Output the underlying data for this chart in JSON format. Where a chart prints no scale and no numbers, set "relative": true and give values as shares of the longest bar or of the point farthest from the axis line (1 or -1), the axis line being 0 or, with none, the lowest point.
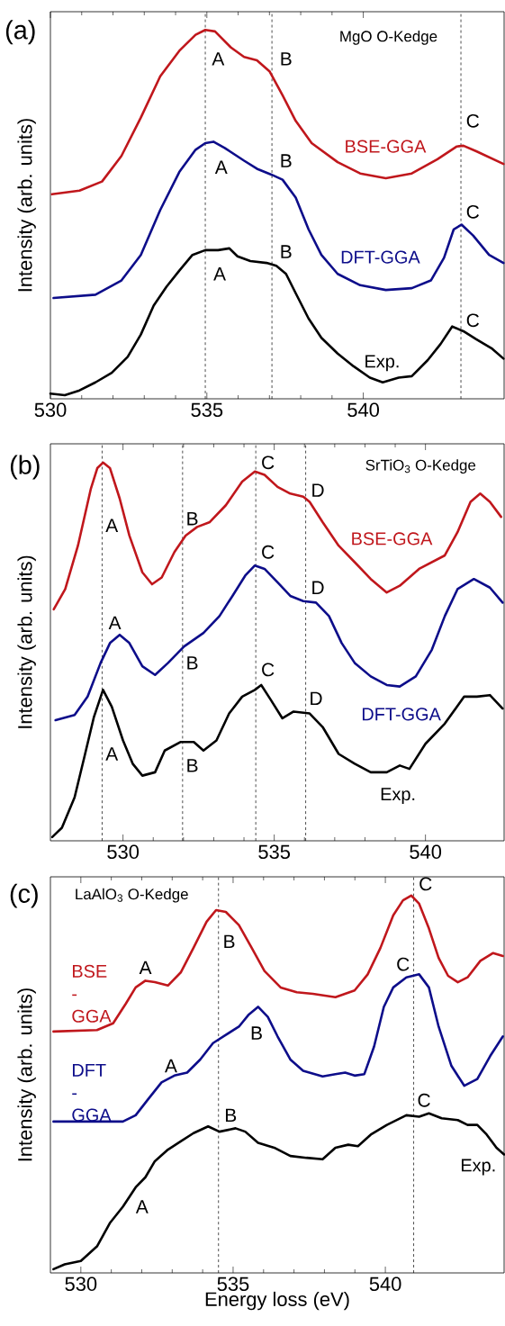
{
  "chart_data": [
    {
      "type": "line",
      "title": "MgO O-Kedge",
      "ylabel": "Intensity (arb. units)",
      "relative": true,
      "xlim": [
        530,
        544.5
      ],
      "xticks": [
        530,
        535,
        540
      ],
      "series": [
        {
          "name": "BSE-GGA",
          "color": "#c0171c",
          "x": [
            530.05,
            530.93,
            531.65,
            532.27,
            532.89,
            533.51,
            534.12,
            534.64,
            534.95,
            535.26,
            535.77,
            536.19,
            536.6,
            537.01,
            537.42,
            537.84,
            538.35,
            539.18,
            539.9,
            540.72,
            541.55,
            542.37,
            542.99,
            543.2,
            543.61,
            544.48
          ],
          "values": [
            0.55,
            0.56,
            0.585,
            0.655,
            0.76,
            0.873,
            0.943,
            0.987,
            1.0,
            0.996,
            0.952,
            0.926,
            0.917,
            0.886,
            0.821,
            0.751,
            0.69,
            0.638,
            0.607,
            0.594,
            0.607,
            0.646,
            0.681,
            0.683,
            0.668,
            0.633
          ]
        },
        {
          "name": "DFT-GGA",
          "color": "#0d0d8a",
          "x": [
            530.1,
            531.44,
            532.27,
            532.89,
            533.51,
            534.12,
            534.64,
            534.95,
            535.21,
            535.57,
            536.19,
            536.6,
            537.06,
            537.42,
            537.84,
            538.25,
            538.66,
            539.18,
            539.9,
            540.72,
            541.55,
            542.16,
            542.58,
            542.89,
            543.14,
            543.51,
            544.02,
            544.48
          ],
          "values": [
            0.266,
            0.275,
            0.314,
            0.384,
            0.507,
            0.611,
            0.672,
            0.69,
            0.694,
            0.677,
            0.642,
            0.62,
            0.604,
            0.59,
            0.541,
            0.454,
            0.384,
            0.332,
            0.301,
            0.288,
            0.293,
            0.314,
            0.376,
            0.454,
            0.467,
            0.437,
            0.384,
            0.362
          ]
        },
        {
          "name": "Exp.",
          "color": "#000000",
          "x": [
            530.0,
            530.46,
            530.93,
            531.44,
            531.96,
            532.47,
            532.89,
            533.3,
            533.71,
            534.12,
            534.54,
            534.95,
            535.36,
            535.72,
            535.98,
            536.39,
            536.91,
            537.22,
            537.53,
            537.84,
            538.25,
            538.66,
            539.18,
            539.69,
            540.21,
            540.62,
            541.13,
            541.55,
            542.06,
            542.47,
            542.84,
            543.2,
            543.61,
            544.12,
            544.48
          ],
          "values": [
            0.004,
            0,
            0.013,
            0.035,
            0.061,
            0.105,
            0.166,
            0.245,
            0.297,
            0.341,
            0.384,
            0.397,
            0.397,
            0.402,
            0.38,
            0.367,
            0.362,
            0.354,
            0.332,
            0.279,
            0.21,
            0.157,
            0.114,
            0.079,
            0.048,
            0.035,
            0.048,
            0.052,
            0.096,
            0.14,
            0.188,
            0.175,
            0.153,
            0.127,
            0.1
          ]
        }
      ],
      "ref_lines": [
        {
          "axis": "x",
          "value": 534.95,
          "line_style": "dashed",
          "color": "#000000"
        },
        {
          "axis": "x",
          "value": 537.08,
          "line_style": "dashed",
          "color": "#000000"
        },
        {
          "axis": "x",
          "value": 543.12,
          "line_style": "dashed",
          "color": "#000000"
        }
      ],
      "annotations": [
        "(a)",
        "A",
        "B",
        "C",
        "A",
        "B",
        "C",
        "A",
        "B",
        "C"
      ]
    },
    {
      "type": "line",
      "title": "SrTiO$_{3}$ O-Kedge",
      "ylabel": "Intensity (arb. units)",
      "relative": true,
      "xlim": [
        527.6,
        542.6
      ],
      "xticks": [
        530,
        535,
        540
      ],
      "series": [
        {
          "name": "BSE-GGA",
          "color": "#c0171c",
          "x": [
            527.71,
            528.09,
            528.51,
            528.94,
            529.15,
            529.34,
            529.57,
            529.89,
            530.21,
            530.64,
            530.96,
            531.28,
            531.7,
            532.07,
            532.45,
            532.87,
            533.4,
            533.94,
            534.36,
            534.68,
            535.11,
            535.53,
            535.96,
            536.17,
            536.6,
            537.13,
            537.66,
            538.19,
            538.72,
            539.15,
            539.79,
            540.64,
            541.06,
            541.49,
            541.81,
            542.13,
            542.5
          ],
          "values": [
            0.608,
            0.662,
            0.778,
            0.931,
            0.985,
            1.0,
            0.985,
            0.904,
            0.805,
            0.707,
            0.675,
            0.693,
            0.761,
            0.805,
            0.828,
            0.841,
            0.886,
            0.949,
            0.976,
            0.967,
            0.935,
            0.917,
            0.909,
            0.895,
            0.841,
            0.778,
            0.734,
            0.689,
            0.653,
            0.671,
            0.716,
            0.752,
            0.814,
            0.895,
            0.917,
            0.895,
            0.855
          ]
        },
        {
          "name": "DFT-GGA",
          "color": "#0d0d8a",
          "x": [
            527.77,
            528.4,
            528.83,
            529.26,
            529.57,
            529.89,
            530.21,
            530.64,
            531.06,
            531.49,
            532.02,
            532.66,
            533.19,
            533.62,
            534.04,
            534.36,
            534.68,
            535.11,
            535.53,
            535.96,
            536.38,
            536.81,
            537.23,
            537.66,
            538.19,
            538.72,
            539.15,
            539.68,
            540.21,
            540.64,
            541.06,
            541.6,
            542.13,
            542.55
          ],
          "values": [
            0.312,
            0.326,
            0.375,
            0.465,
            0.518,
            0.54,
            0.518,
            0.456,
            0.433,
            0.465,
            0.509,
            0.545,
            0.59,
            0.644,
            0.698,
            0.725,
            0.716,
            0.68,
            0.644,
            0.63,
            0.626,
            0.59,
            0.518,
            0.465,
            0.429,
            0.406,
            0.402,
            0.429,
            0.5,
            0.59,
            0.662,
            0.689,
            0.666,
            0.626
          ]
        },
        {
          "name": "Exp.",
          "color": "#000000",
          "x": [
            527.66,
            527.98,
            528.4,
            528.72,
            529.04,
            529.34,
            529.63,
            530.0,
            530.32,
            530.64,
            531.06,
            531.38,
            531.91,
            532.34,
            532.66,
            533.09,
            533.51,
            533.94,
            534.36,
            534.57,
            534.89,
            535.27,
            535.64,
            536.17,
            536.6,
            537.13,
            537.66,
            538.19,
            538.72,
            539.15,
            539.47,
            540.0,
            540.64,
            541.28,
            541.7,
            542.13,
            542.55
          ],
          "values": [
            0,
            0.025,
            0.106,
            0.213,
            0.321,
            0.393,
            0.348,
            0.258,
            0.196,
            0.164,
            0.173,
            0.231,
            0.254,
            0.254,
            0.231,
            0.258,
            0.33,
            0.375,
            0.393,
            0.406,
            0.366,
            0.317,
            0.335,
            0.33,
            0.294,
            0.222,
            0.196,
            0.173,
            0.173,
            0.191,
            0.182,
            0.249,
            0.303,
            0.375,
            0.375,
            0.379,
            0.343
          ]
        }
      ],
      "ref_lines": [
        {
          "axis": "x",
          "value": 529.31,
          "line_style": "dashed",
          "color": "#000000"
        },
        {
          "axis": "x",
          "value": 531.97,
          "line_style": "dashed",
          "color": "#000000"
        },
        {
          "axis": "x",
          "value": 534.39,
          "line_style": "dashed",
          "color": "#000000"
        },
        {
          "axis": "x",
          "value": 536.04,
          "line_style": "dashed",
          "color": "#000000"
        }
      ],
      "annotations": [
        "(b)",
        "A",
        "B",
        "C",
        "D",
        "A",
        "B",
        "C",
        "D",
        "A",
        "B",
        "C",
        "D"
      ]
    },
    {
      "type": "line",
      "title": "LaAlO$_{3}$ O-Kedge",
      "xlabel": "Energy loss (eV)",
      "ylabel": "Intensity (arb. units)",
      "relative": true,
      "xlim": [
        529,
        543.9
      ],
      "xticks": [
        530,
        535,
        540
      ],
      "series": [
        {
          "name": "BSE -GGA",
          "color": "#c0171c",
          "x": [
            529.1,
            530.53,
            531.06,
            531.48,
            531.8,
            532.12,
            532.43,
            532.86,
            533.28,
            533.7,
            534.13,
            534.44,
            534.76,
            535.19,
            535.61,
            536.03,
            536.56,
            537.09,
            537.62,
            538.36,
            538.99,
            539.42,
            539.84,
            540.26,
            540.58,
            540.85,
            541.11,
            541.43,
            541.75,
            542.06,
            542.38,
            542.7,
            543.12,
            543.54,
            543.86
          ],
          "values": [
            0.636,
            0.64,
            0.658,
            0.711,
            0.754,
            0.772,
            0.768,
            0.759,
            0.794,
            0.86,
            0.93,
            0.961,
            0.956,
            0.921,
            0.86,
            0.798,
            0.754,
            0.741,
            0.737,
            0.728,
            0.746,
            0.789,
            0.86,
            0.947,
            0.987,
            1.0,
            0.978,
            0.912,
            0.833,
            0.785,
            0.768,
            0.781,
            0.825,
            0.846,
            0.838
          ]
        },
        {
          "name": "DFT -GGA",
          "color": "#0d0d8a",
          "x": [
            529.1,
            531.38,
            531.8,
            532.22,
            532.65,
            533.07,
            533.49,
            533.92,
            534.34,
            534.76,
            535.19,
            535.5,
            535.82,
            536.14,
            536.46,
            536.88,
            537.3,
            537.94,
            538.36,
            538.68,
            538.99,
            539.31,
            539.63,
            539.95,
            540.26,
            540.69,
            541.11,
            541.43,
            541.75,
            542.17,
            542.59,
            543.02,
            543.44,
            543.86
          ],
          "values": [
            0.395,
            0.395,
            0.412,
            0.456,
            0.5,
            0.518,
            0.526,
            0.561,
            0.605,
            0.627,
            0.649,
            0.68,
            0.702,
            0.675,
            0.623,
            0.561,
            0.531,
            0.516,
            0.522,
            0.526,
            0.518,
            0.522,
            0.596,
            0.702,
            0.754,
            0.781,
            0.789,
            0.754,
            0.649,
            0.544,
            0.491,
            0.509,
            0.57,
            0.623
          ]
        },
        {
          "name": "Exp.",
          "color": "#000000",
          "x": [
            529.1,
            529.47,
            530.0,
            530.53,
            530.95,
            531.38,
            531.8,
            532.12,
            532.43,
            532.86,
            533.28,
            533.7,
            534.18,
            534.55,
            535.08,
            535.4,
            535.82,
            536.35,
            536.88,
            537.41,
            537.94,
            538.36,
            538.78,
            539.1,
            539.52,
            540.05,
            540.69,
            541.11,
            541.43,
            541.85,
            542.38,
            542.7,
            543.02,
            543.33,
            543.65,
            543.9
          ],
          "values": [
            0,
            0.013,
            0.022,
            0.061,
            0.123,
            0.167,
            0.219,
            0.246,
            0.289,
            0.32,
            0.342,
            0.364,
            0.382,
            0.368,
            0.377,
            0.368,
            0.338,
            0.325,
            0.303,
            0.298,
            0.294,
            0.325,
            0.333,
            0.329,
            0.36,
            0.386,
            0.412,
            0.408,
            0.417,
            0.404,
            0.399,
            0.386,
            0.386,
            0.36,
            0.325,
            0.307
          ]
        }
      ],
      "ref_lines": [
        {
          "axis": "x",
          "value": 534.52,
          "line_style": "dashed",
          "color": "#000000"
        },
        {
          "axis": "x",
          "value": 540.93,
          "line_style": "dashed",
          "color": "#000000"
        }
      ],
      "annotations": [
        "(c)",
        "A",
        "B",
        "C",
        "A",
        "B",
        "C",
        "A",
        "B",
        "C"
      ]
    }
  ]
}
